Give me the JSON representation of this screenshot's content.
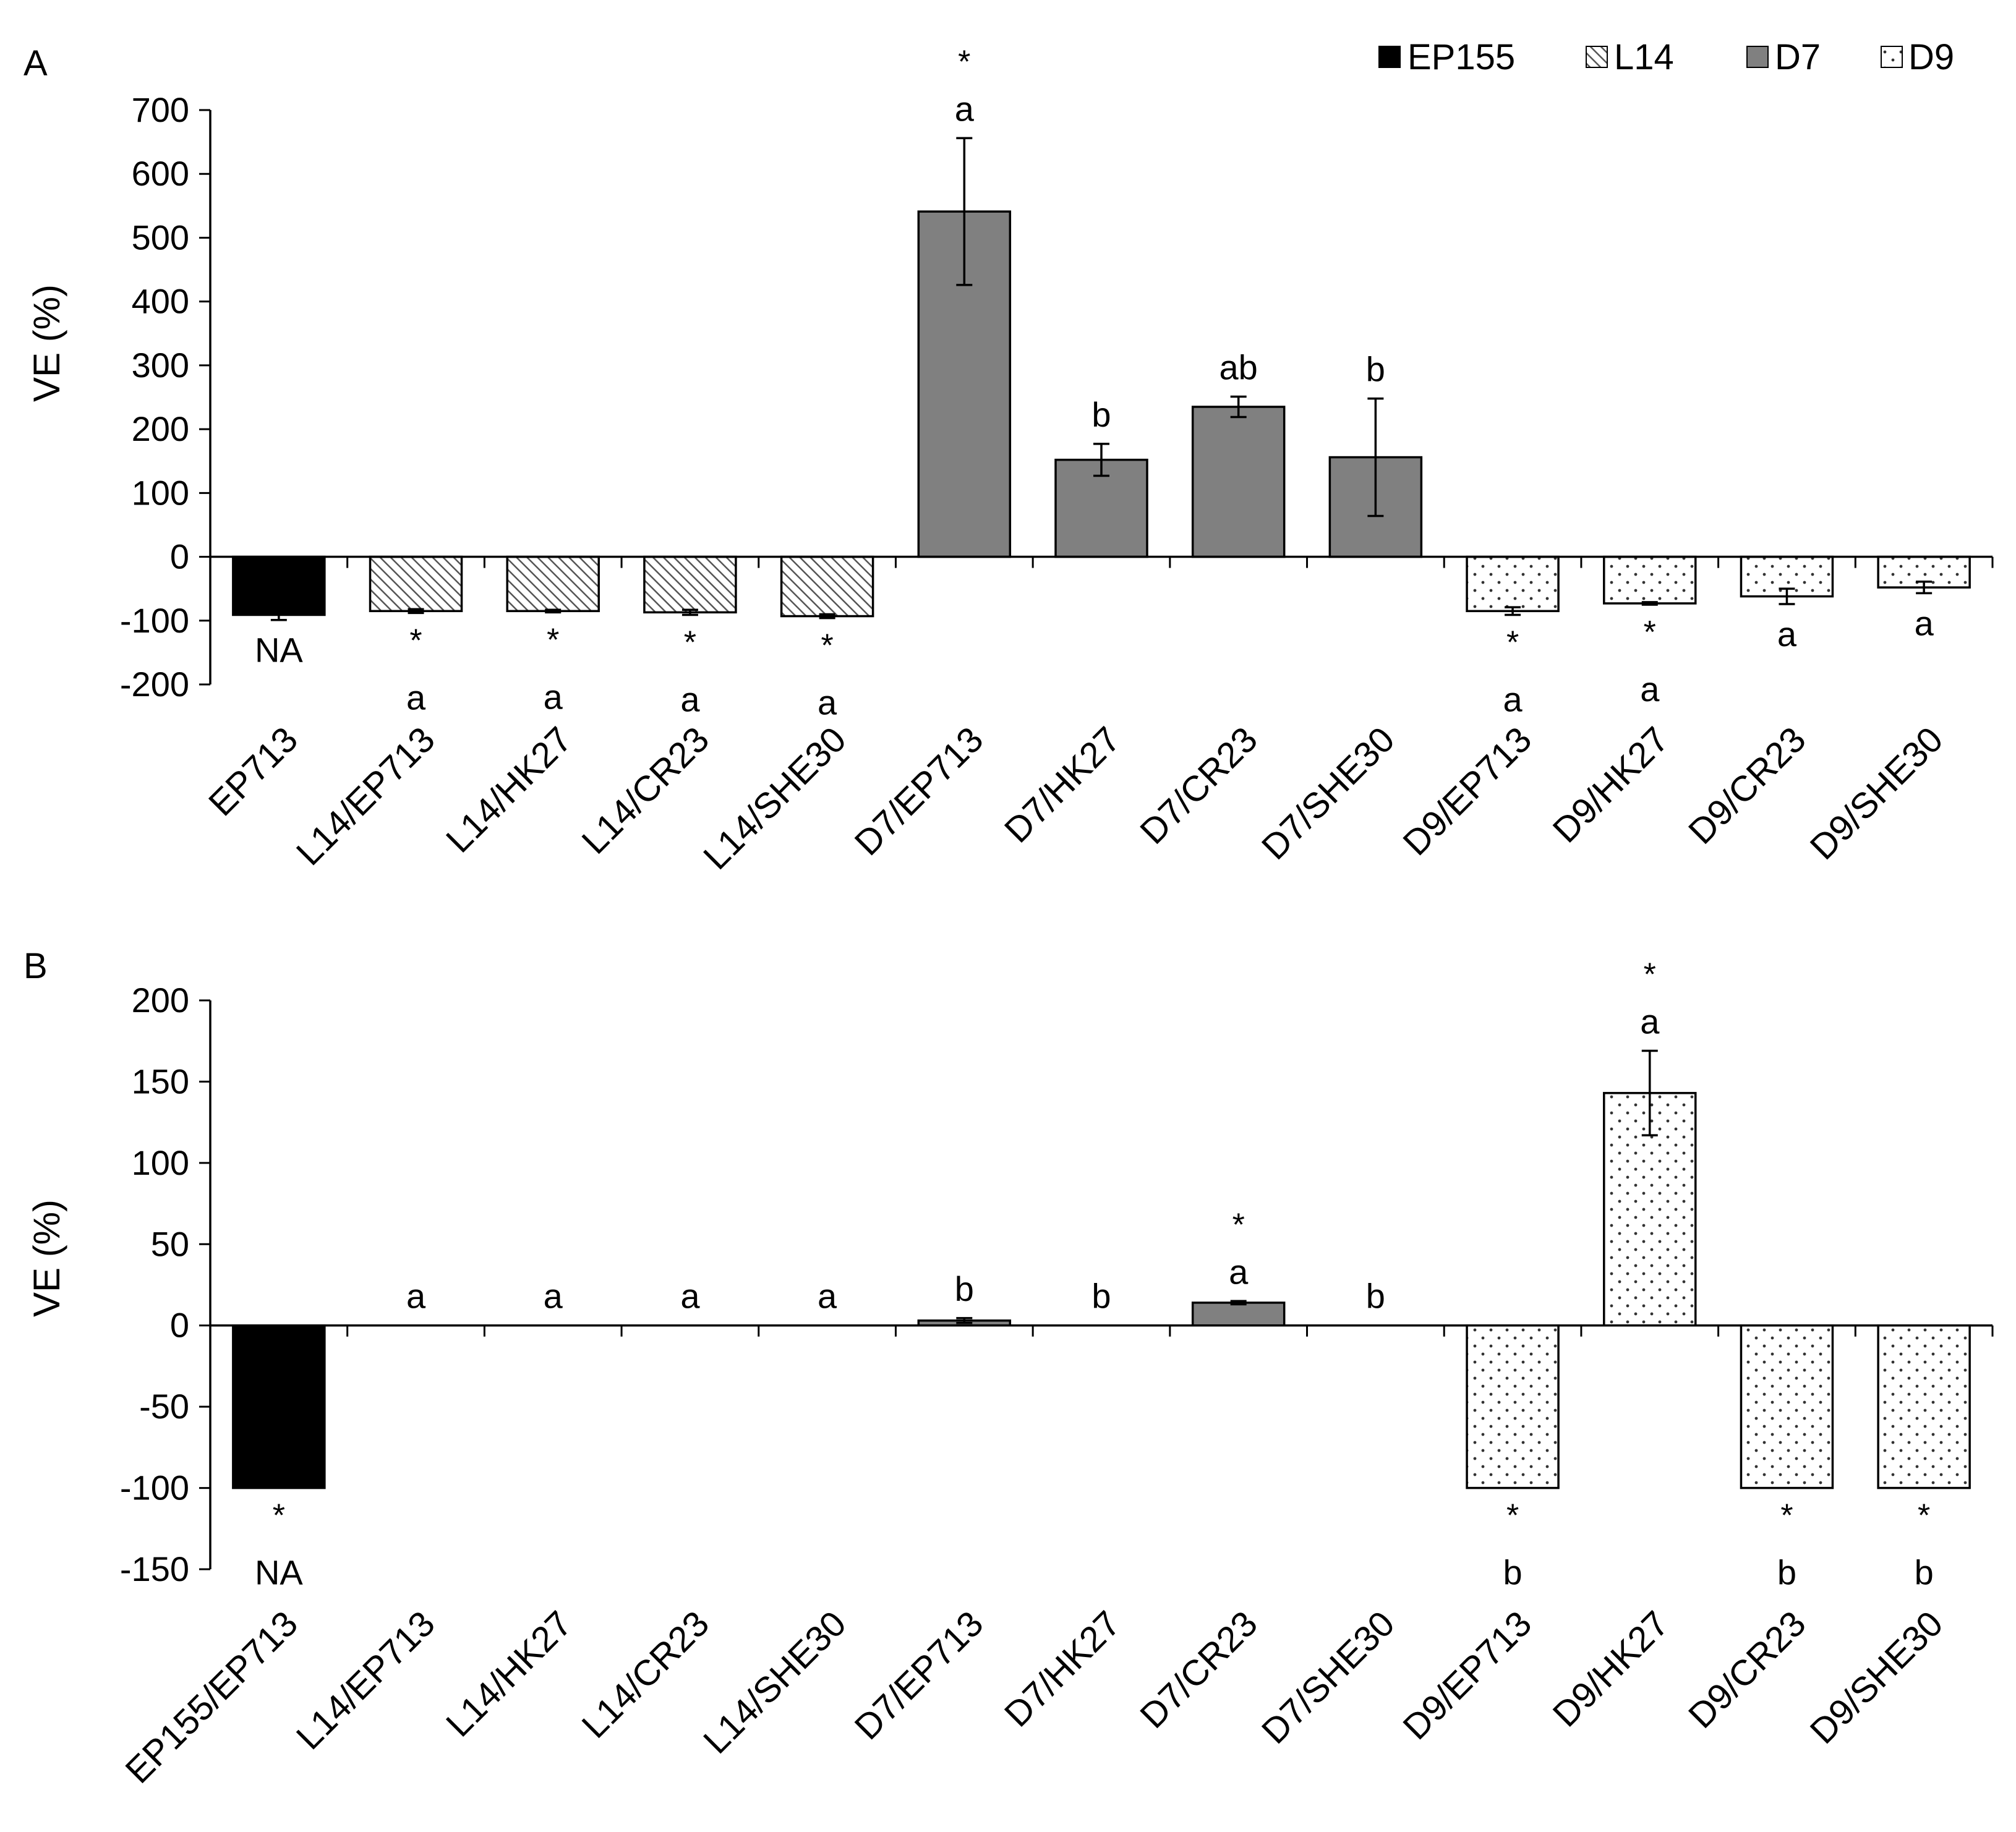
{
  "chart_data": [
    {
      "type": "bar",
      "panel": "A",
      "ylabel": "VE (%)",
      "ylim": [
        -200,
        700
      ],
      "yticks": [
        -200,
        -100,
        0,
        100,
        200,
        300,
        400,
        500,
        600,
        700
      ],
      "categories": [
        "EP713",
        "L14/EP713",
        "L14/HK27",
        "L14/CR23",
        "L14/SHE30",
        "D7/EP713",
        "D7/HK27",
        "D7/CR23",
        "D7/SHE30",
        "D9/EP713",
        "D9/HK27",
        "D9/CR23",
        "D9/SHE30"
      ],
      "groups": [
        "EP155",
        "L14",
        "L14",
        "L14",
        "L14",
        "D7",
        "D7",
        "D7",
        "D7",
        "D9",
        "D9",
        "D9",
        "D9"
      ],
      "values": [
        -91,
        -85,
        -85,
        -87,
        -93,
        541,
        152,
        235,
        156,
        -85,
        -73,
        -62,
        -48
      ],
      "errors": [
        8,
        3,
        2,
        4,
        3,
        115,
        25,
        16,
        92,
        6,
        2,
        12,
        9
      ],
      "stars": [
        "",
        "*",
        "*",
        "*",
        "*",
        "*",
        "",
        "",
        "",
        "*",
        "*",
        "",
        ""
      ],
      "letters": [
        "NA",
        "a",
        "a",
        "a",
        "a",
        "a",
        "b",
        "ab",
        "b",
        "a",
        "a",
        "a",
        "a"
      ]
    },
    {
      "type": "bar",
      "panel": "B",
      "ylabel": "VE (%)",
      "ylim": [
        -150,
        200
      ],
      "yticks": [
        -150,
        -100,
        -50,
        0,
        50,
        100,
        150,
        200
      ],
      "categories": [
        "EP155/EP713",
        "L14/EP713",
        "L14/HK27",
        "L14/CR23",
        "L14/SHE30",
        "D7/EP713",
        "D7/HK27",
        "D7/CR23",
        "D7/SHE30",
        "D9/EP713",
        "D9/HK27",
        "D9/CR23",
        "D9/SHE30"
      ],
      "groups": [
        "EP155",
        "L14",
        "L14",
        "L14",
        "L14",
        "D7",
        "D7",
        "D7",
        "D7",
        "D9",
        "D9",
        "D9",
        "D9"
      ],
      "values": [
        -100,
        0,
        0,
        0,
        0,
        3,
        0,
        14,
        0,
        -100,
        143,
        -100,
        -100
      ],
      "errors": [
        0,
        0,
        0,
        0,
        0,
        1.5,
        0,
        1,
        0,
        0,
        26,
        0,
        0
      ],
      "stars": [
        "*",
        "",
        "",
        "",
        "",
        "",
        "",
        "*",
        "",
        "*",
        "*",
        "*",
        "*"
      ],
      "letters": [
        "NA",
        "a",
        "a",
        "a",
        "a",
        "b",
        "b",
        "a",
        "b",
        "b",
        "a",
        "b",
        "b"
      ]
    }
  ],
  "legend": {
    "items": [
      {
        "name": "EP155",
        "style": "solid-black"
      },
      {
        "name": "L14",
        "style": "hatch"
      },
      {
        "name": "D7",
        "style": "solid-gray"
      },
      {
        "name": "D9",
        "style": "dots"
      }
    ]
  },
  "colors": {
    "EP155": "#000000",
    "D7": "#808080",
    "L14_hatch": "#606060",
    "D9_dot": "#333333",
    "axis": "#000000"
  }
}
